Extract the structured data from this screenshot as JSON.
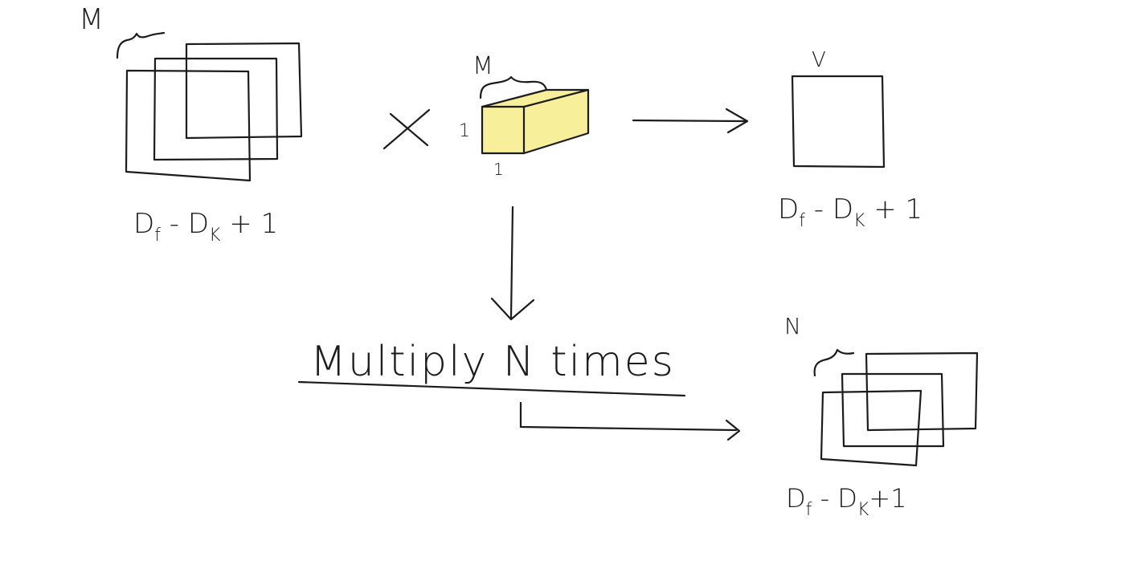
{
  "colors": {
    "ink": "#1c1c1c",
    "filter_fill": "#f7ef9a",
    "background": "#ffffff"
  },
  "input_volume": {
    "depth_label": "M",
    "size_label": {
      "base": "D",
      "sub1": "f",
      "middle": " - D",
      "sub2": "K",
      "tail": " + 1"
    }
  },
  "operator": {
    "symbol": "×"
  },
  "filter": {
    "depth_label": "M",
    "side_label": "1",
    "bottom_label": "1"
  },
  "single_output": {
    "top_label": "V",
    "size_label": {
      "base": "D",
      "sub1": "f",
      "middle": " - D",
      "sub2": "K",
      "tail": " + 1"
    }
  },
  "repeat_note": {
    "text": "Multiply N times"
  },
  "output_volume": {
    "depth_label": "N",
    "size_label": {
      "base": "D",
      "sub1": "f",
      "middle": " - D",
      "sub2": "K",
      "tail": "+1"
    }
  }
}
